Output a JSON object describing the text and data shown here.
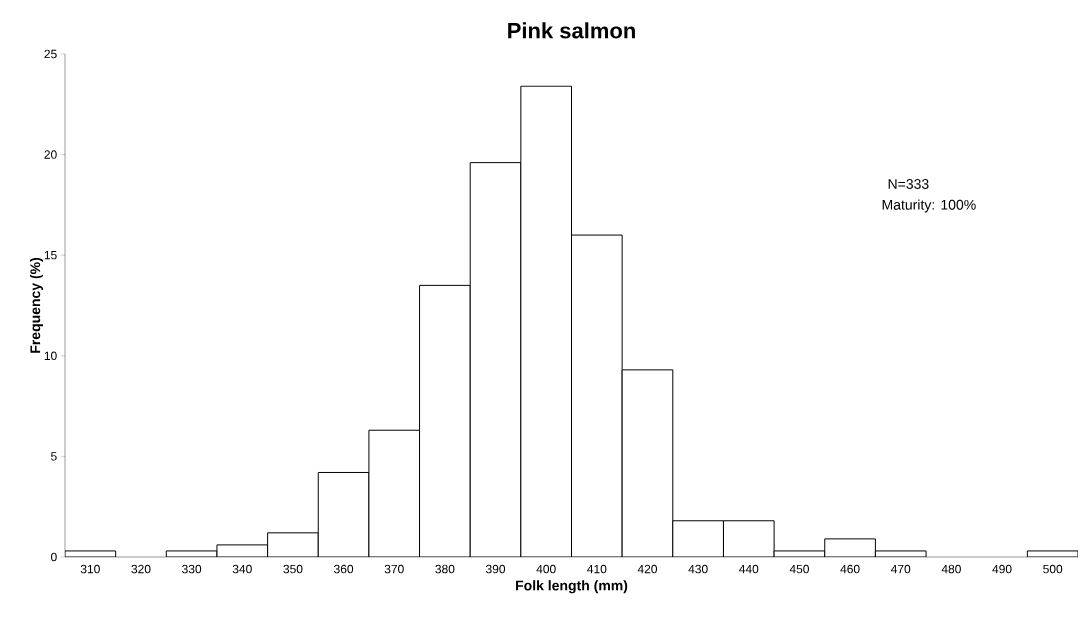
{
  "chart_data": {
    "type": "bar",
    "title": "Pink salmon",
    "xlabel": "Folk length (mm)",
    "ylabel": "Frequency (%)",
    "categories": [
      "310",
      "320",
      "330",
      "340",
      "350",
      "360",
      "370",
      "380",
      "390",
      "400",
      "410",
      "420",
      "430",
      "440",
      "450",
      "460",
      "470",
      "480",
      "490",
      "500"
    ],
    "values": [
      0.3,
      0,
      0.3,
      0.6,
      1.2,
      4.2,
      6.3,
      13.5,
      19.6,
      23.4,
      16.0,
      9.3,
      1.8,
      1.8,
      0.3,
      0.9,
      0.3,
      0,
      0,
      0.3
    ],
    "color": "#ffffff",
    "ylim": [
      0,
      25
    ],
    "yticks": [
      0,
      5,
      10,
      15,
      20,
      25
    ],
    "annotations": [
      "N=333",
      "Maturity: 100%"
    ]
  }
}
